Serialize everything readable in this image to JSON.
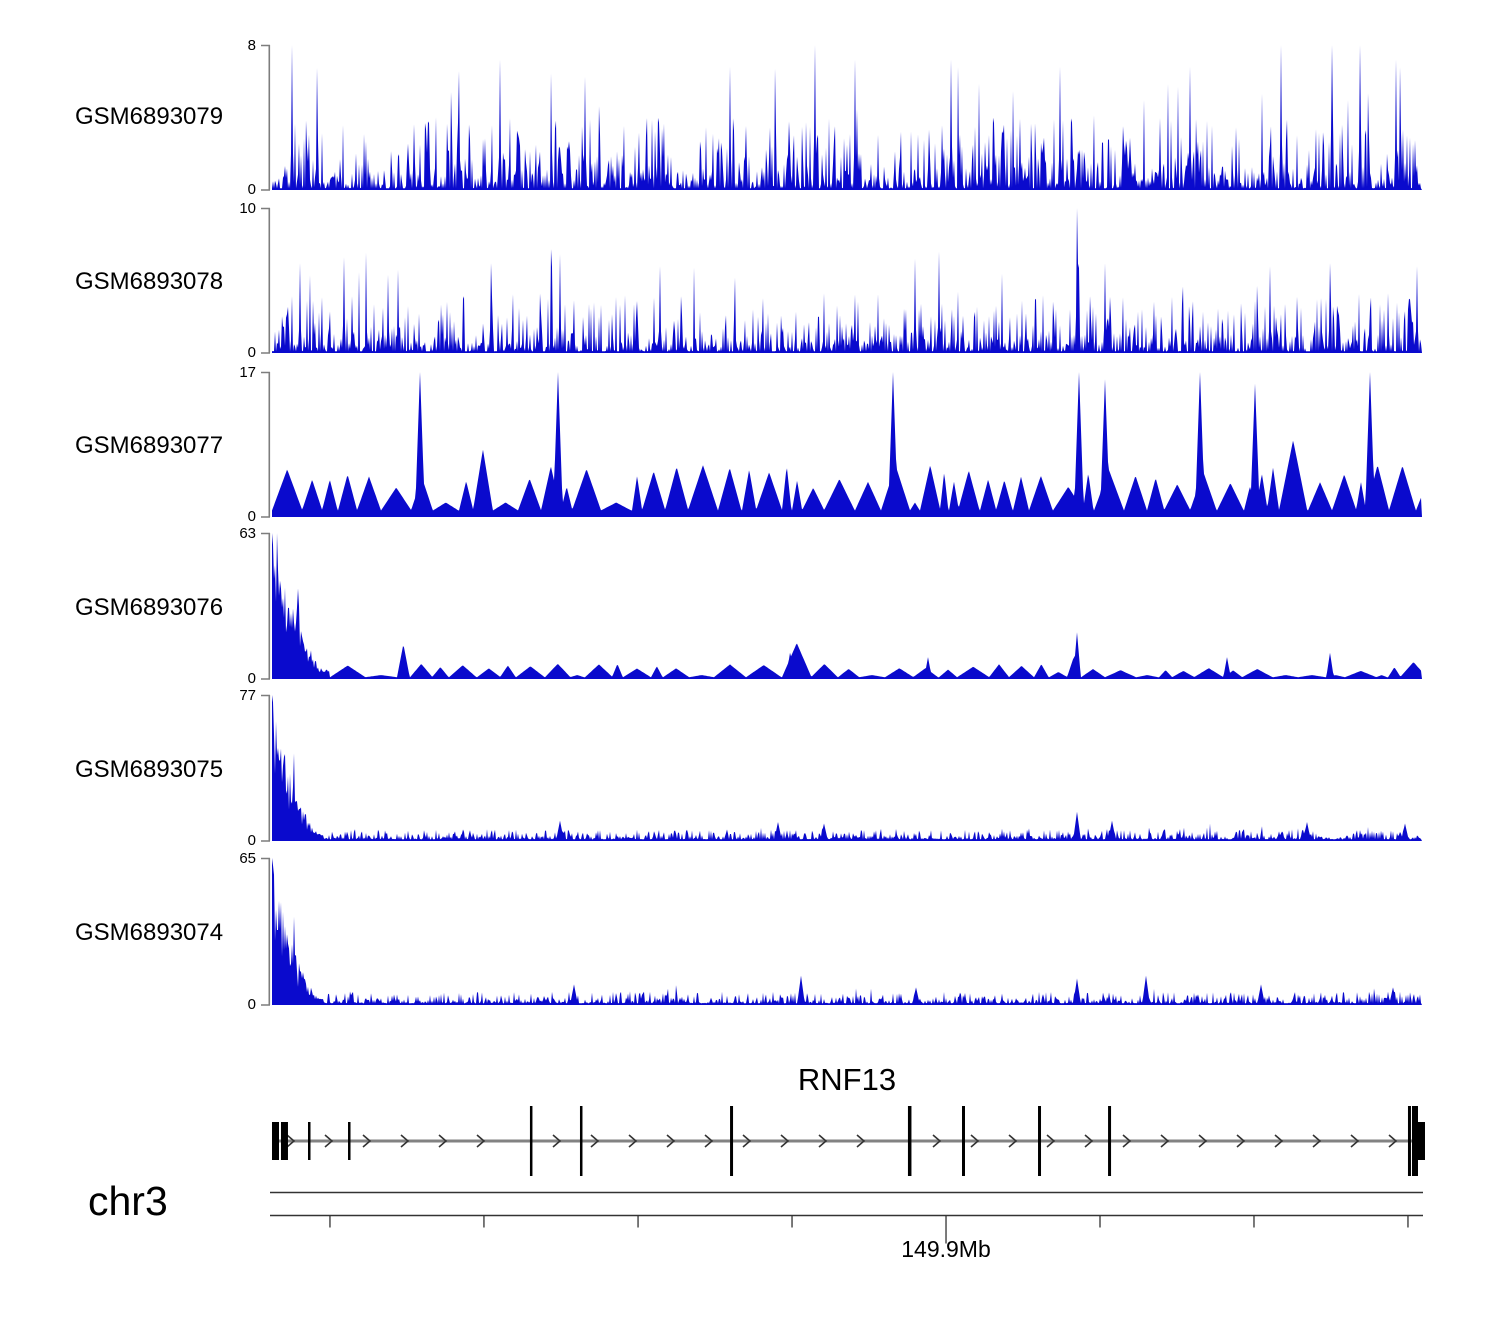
{
  "chart_data": {
    "type": "area",
    "description": "Genome browser read-coverage tracks (6 samples) over gene RNF13 on chr3, with gene model and genomic axis",
    "colors": {
      "data_fill": "#0A0ACD",
      "bracket_gray": "#7d7d7d",
      "gene_line": "#828282",
      "arrow": "#333333",
      "exon": "#000000",
      "axis_line": "#333333"
    },
    "tracks": [
      {
        "name": "GSM6893079",
        "ylim": [
          0,
          8
        ],
        "ymax_label": "8",
        "ymin_label": "0",
        "style": "spiky",
        "seed": 101,
        "amp": 1.0,
        "peaks": [
          [
            0.017,
            1
          ],
          [
            0.163,
            0.82
          ],
          [
            0.198,
            0.9
          ],
          [
            0.272,
            0.78
          ],
          [
            0.398,
            0.85
          ],
          [
            0.472,
            1
          ],
          [
            0.507,
            0.9
          ],
          [
            0.59,
            0.9
          ],
          [
            0.685,
            0.85
          ],
          [
            0.798,
            0.85
          ],
          [
            0.877,
            1
          ],
          [
            0.922,
            1
          ],
          [
            0.946,
            1
          ],
          [
            0.977,
            0.9
          ]
        ]
      },
      {
        "name": "GSM6893078",
        "ylim": [
          0,
          10
        ],
        "ymax_label": "10",
        "ymin_label": "0",
        "style": "spiky",
        "seed": 202,
        "amp": 0.85,
        "peaks": [
          [
            0.024,
            0.62
          ],
          [
            0.063,
            0.66
          ],
          [
            0.19,
            0.62
          ],
          [
            0.25,
            0.68
          ],
          [
            0.337,
            0.6
          ],
          [
            0.559,
            0.65
          ],
          [
            0.58,
            0.7
          ],
          [
            0.7,
            1.0
          ],
          [
            0.724,
            0.62
          ],
          [
            0.868,
            0.6
          ],
          [
            0.92,
            0.62
          ],
          [
            0.996,
            0.6
          ]
        ]
      },
      {
        "name": "GSM6893077",
        "ylim": [
          0,
          17
        ],
        "ymax_label": "17",
        "ymin_label": "0",
        "style": "triangles",
        "seed": 303,
        "amp": 1.0,
        "peaks": [
          [
            0.129,
            1
          ],
          [
            0.249,
            1
          ],
          [
            0.54,
            1
          ],
          [
            0.702,
            1
          ],
          [
            0.724,
            0.95
          ],
          [
            0.807,
            1
          ],
          [
            0.855,
            0.92
          ],
          [
            0.955,
            1
          ]
        ]
      },
      {
        "name": "GSM6893076",
        "ylim": [
          0,
          63
        ],
        "ymax_label": "63",
        "ymin_label": "0",
        "style": "decay-triangles",
        "seed": 404,
        "amp": 1.0,
        "peaks": [
          [
            0.45,
            0.18
          ],
          [
            0.57,
            0.15
          ],
          [
            0.7,
            0.32
          ],
          [
            0.83,
            0.15
          ],
          [
            0.92,
            0.18
          ]
        ]
      },
      {
        "name": "GSM6893075",
        "ylim": [
          0,
          77
        ],
        "ymax_label": "77",
        "ymin_label": "0",
        "style": "decay-spiky",
        "seed": 505,
        "amp": 1.0,
        "peaks": [
          [
            0.25,
            0.14
          ],
          [
            0.44,
            0.13
          ],
          [
            0.48,
            0.12
          ],
          [
            0.7,
            0.2
          ],
          [
            0.73,
            0.14
          ],
          [
            0.9,
            0.13
          ],
          [
            0.985,
            0.12
          ]
        ]
      },
      {
        "name": "GSM6893074",
        "ylim": [
          0,
          65
        ],
        "ymax_label": "65",
        "ymin_label": "0",
        "style": "decay-spiky",
        "seed": 606,
        "amp": 1.15,
        "peaks": [
          [
            0.263,
            0.14
          ],
          [
            0.46,
            0.2
          ],
          [
            0.56,
            0.12
          ],
          [
            0.7,
            0.18
          ],
          [
            0.76,
            0.2
          ],
          [
            0.86,
            0.14
          ],
          [
            0.975,
            0.12
          ]
        ]
      }
    ],
    "gene_track": {
      "gene": "RNF13",
      "strand": "+",
      "exons": [
        {
          "x": 0.0,
          "w": 7,
          "size": "short",
          "kind": "box"
        },
        {
          "x": 0.0078,
          "w": 7,
          "size": "short",
          "kind": "box"
        },
        {
          "x": 0.0313,
          "w": 2.5,
          "size": "short",
          "kind": "line"
        },
        {
          "x": 0.0661,
          "w": 2.5,
          "size": "short",
          "kind": "line"
        },
        {
          "x": 0.2243,
          "w": 2.5,
          "size": "tall",
          "kind": "line"
        },
        {
          "x": 0.2678,
          "w": 2.5,
          "size": "tall",
          "kind": "line"
        },
        {
          "x": 0.3983,
          "w": 3,
          "size": "tall",
          "kind": "line"
        },
        {
          "x": 0.553,
          "w": 3.5,
          "size": "tall",
          "kind": "line"
        },
        {
          "x": 0.6,
          "w": 3,
          "size": "tall",
          "kind": "line"
        },
        {
          "x": 0.6661,
          "w": 3,
          "size": "tall",
          "kind": "line"
        },
        {
          "x": 0.727,
          "w": 3,
          "size": "tall",
          "kind": "line"
        },
        {
          "x": 0.9878,
          "w": 3,
          "size": "tall",
          "kind": "line"
        },
        {
          "x": 0.9913,
          "w": 6,
          "size": "tall",
          "kind": "box"
        },
        {
          "x": 0.9913,
          "w": 13,
          "size": "short",
          "kind": "box"
        }
      ]
    },
    "axis": {
      "chromosome": "chr3",
      "ticks": [
        0.0504,
        0.1843,
        0.3183,
        0.4522,
        0.5861,
        0.72,
        0.8539,
        0.9878
      ],
      "labeled_tick_index": 4,
      "tick_label": "149.9Mb"
    }
  }
}
